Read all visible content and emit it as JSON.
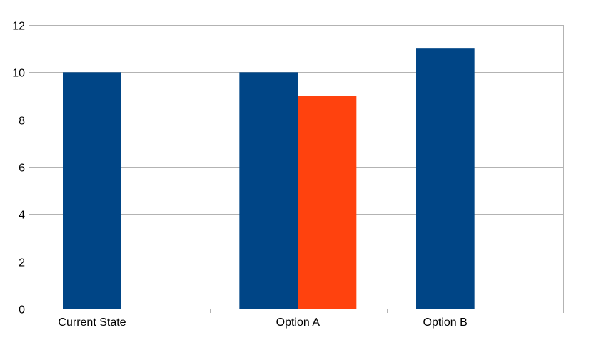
{
  "chart_data": {
    "type": "bar",
    "categories": [
      "Current State",
      "Option A",
      "Option B"
    ],
    "series": [
      {
        "values": [
          10,
          10,
          11
        ],
        "color": "#004586",
        "slot": 0
      },
      {
        "values": [
          null,
          9,
          null
        ],
        "color": "#ff420e",
        "slot": 1
      }
    ],
    "yticks": [
      "0",
      "2",
      "4",
      "6",
      "8",
      "10",
      "12"
    ],
    "ylim": [
      0,
      12
    ],
    "grid": true,
    "legend": "none"
  }
}
